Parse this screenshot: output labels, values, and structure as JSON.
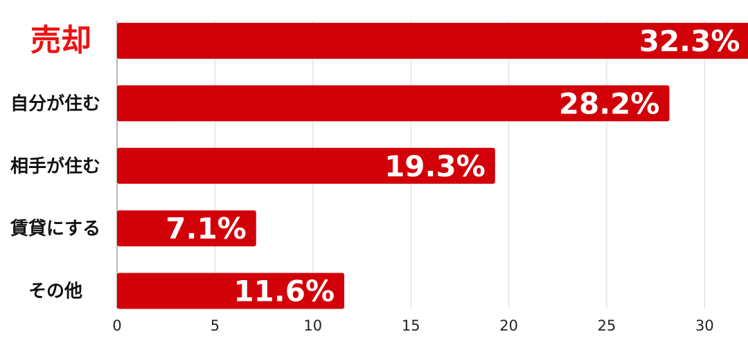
{
  "chart_data": {
    "type": "bar",
    "orientation": "horizontal",
    "categories": [
      "売却",
      "自分が住む",
      "相手が住む",
      "賃貸にする",
      "その他"
    ],
    "values": [
      32.3,
      28.2,
      19.3,
      7.1,
      11.6
    ],
    "value_labels": [
      "32.3%",
      "28.2%",
      "19.3%",
      "7.1%",
      "11.6%"
    ],
    "highlight_category": "売却",
    "xlim": [
      0,
      32
    ],
    "xticks": [
      0,
      5,
      10,
      15,
      20,
      25,
      30
    ],
    "grid": true,
    "legend": "none",
    "title": "",
    "xlabel": "",
    "ylabel": ""
  },
  "colors": {
    "bar": "#d20008",
    "highlight_label": "#ee1111",
    "label": "#111111",
    "grid": "#d6d6d6",
    "axis": "#888888"
  }
}
